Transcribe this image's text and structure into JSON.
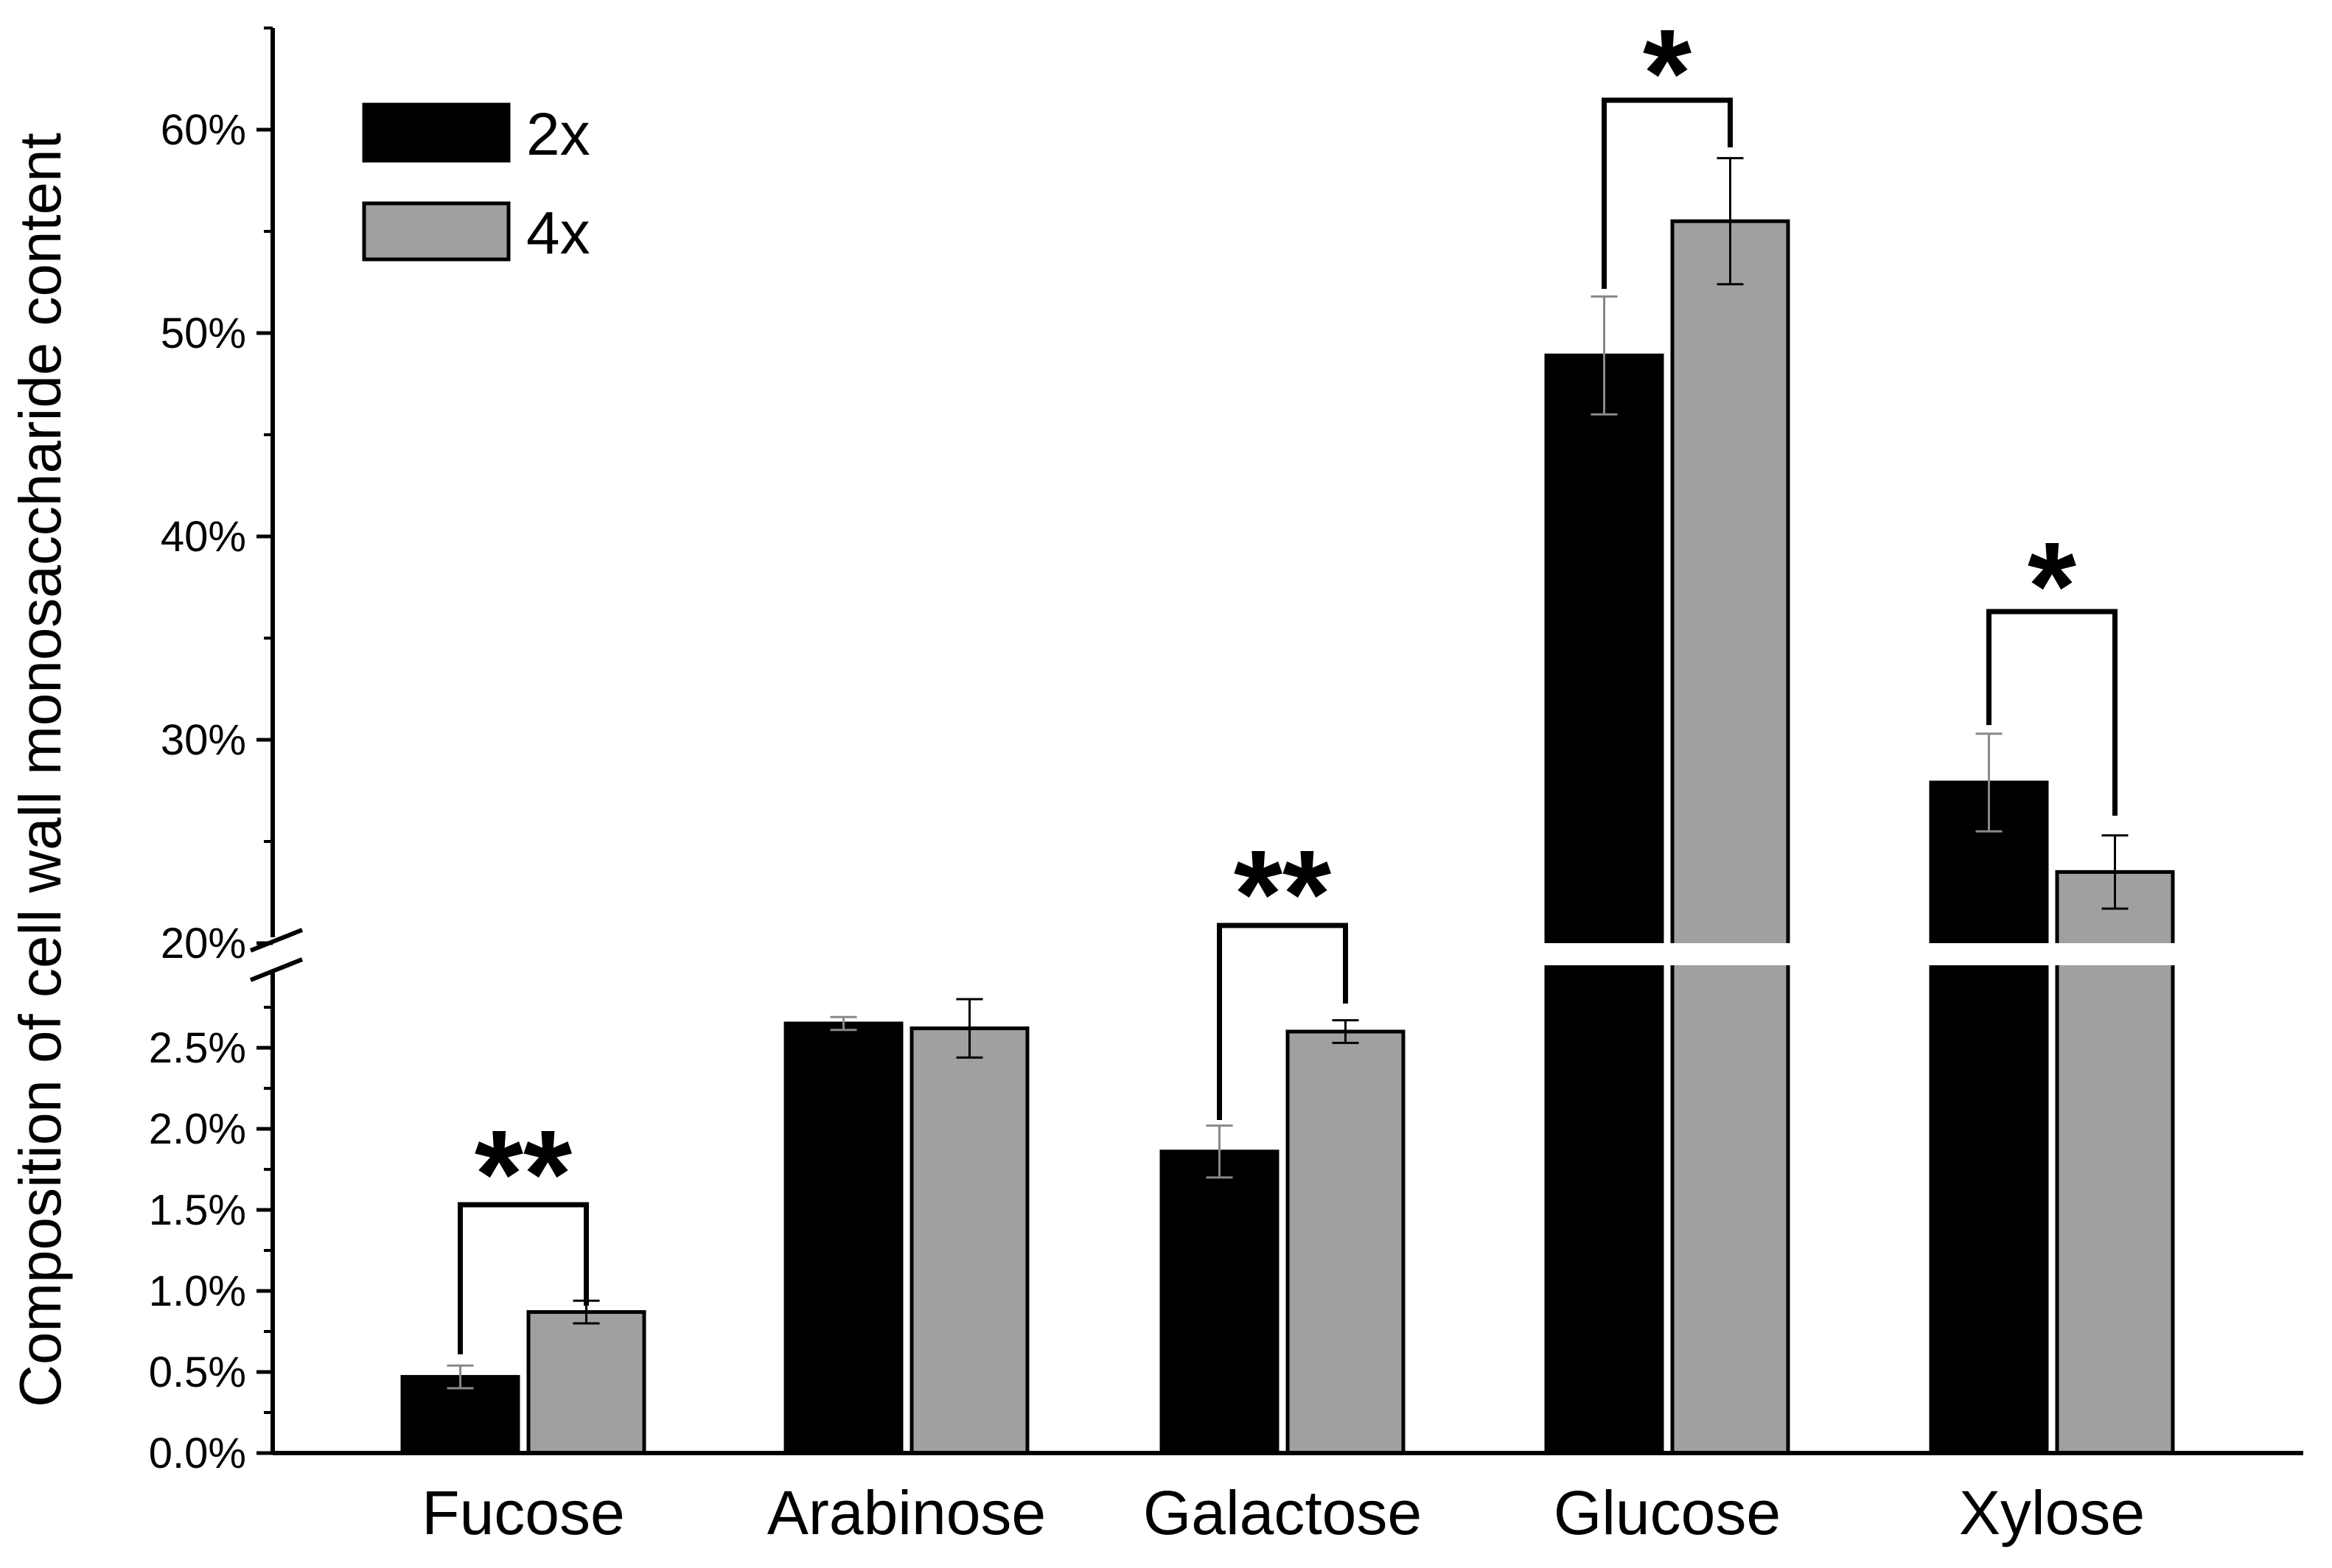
{
  "chart_data": {
    "type": "bar",
    "title": "",
    "xlabel": "",
    "ylabel": "Composition of cell wall monosaccharide content",
    "categories": [
      "Fucose",
      "Arabinose",
      "Galactose",
      "Glucose",
      "Xylose"
    ],
    "series": [
      {
        "name": "2x",
        "color": "#000000",
        "values": [
          0.47,
          2.65,
          1.86,
          48.9,
          27.9
        ],
        "errors": [
          0.07,
          0.04,
          0.16,
          2.9,
          2.4
        ]
      },
      {
        "name": "4x",
        "color": "#a0a0a0",
        "values": [
          0.87,
          2.62,
          2.6,
          55.5,
          23.5
        ],
        "errors": [
          0.07,
          0.18,
          0.07,
          3.1,
          1.8
        ]
      }
    ],
    "axis_break": {
      "lower_range": [
        0,
        2.85
      ],
      "upper_range": [
        20,
        65
      ]
    },
    "lower_ticks": [
      {
        "value": 0.0,
        "label": "0.0%"
      },
      {
        "value": 0.5,
        "label": "0.5%"
      },
      {
        "value": 1.0,
        "label": "1.0%"
      },
      {
        "value": 1.5,
        "label": "1.5%"
      },
      {
        "value": 2.0,
        "label": "2.0%"
      },
      {
        "value": 2.5,
        "label": "2.5%"
      }
    ],
    "upper_ticks": [
      {
        "value": 20,
        "label": "20%"
      },
      {
        "value": 30,
        "label": "30%"
      },
      {
        "value": 40,
        "label": "40%"
      },
      {
        "value": 50,
        "label": "50%"
      },
      {
        "value": 60,
        "label": "60%"
      }
    ],
    "significance": [
      {
        "category": "Fucose",
        "label": "**"
      },
      {
        "category": "Galactose",
        "label": "**"
      },
      {
        "category": "Glucose",
        "label": "*"
      },
      {
        "category": "Xylose",
        "label": "*"
      }
    ],
    "legend_position": "top-left"
  }
}
